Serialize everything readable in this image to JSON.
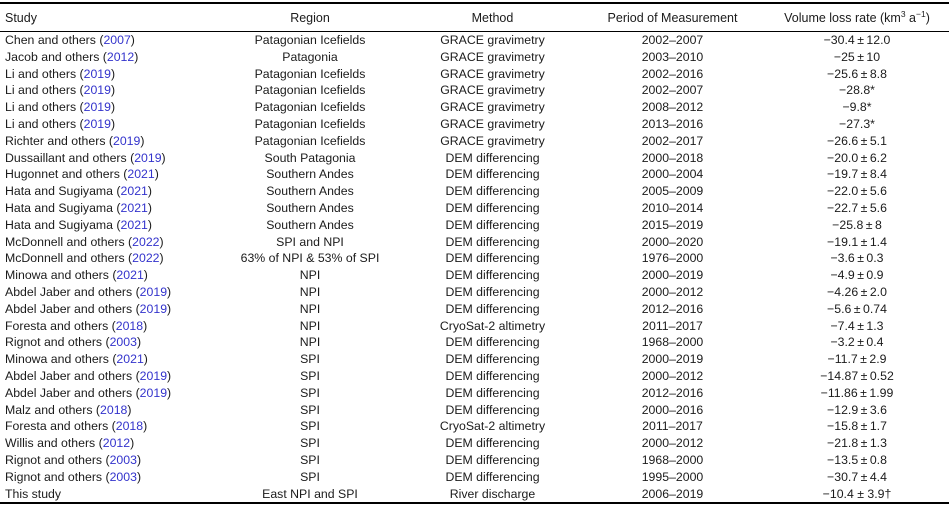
{
  "colors": {
    "link_blue": "#3333cc",
    "text": "#1b1b1b",
    "rule": "#000000",
    "background": "#ffffff"
  },
  "table": {
    "headers": {
      "study": "Study",
      "region": "Region",
      "method": "Method",
      "period": "Period of Measurement",
      "volume": {
        "pre": "Volume loss rate (km",
        "sup1": "3",
        "mid": " a",
        "sup2": "−1",
        "post": ")"
      }
    },
    "rows": [
      {
        "author": "Chen and others",
        "year": "2007",
        "region": "Patagonian Icefields",
        "method": "GRACE gravimetry",
        "period": "2002–2007",
        "value": "−30.4 ± 12.0"
      },
      {
        "author": "Jacob and others",
        "year": "2012",
        "region": "Patagonia",
        "method": "GRACE gravimetry",
        "period": "2003–2010",
        "value": "−25 ± 10"
      },
      {
        "author": "Li and others",
        "year": "2019",
        "region": "Patagonian Icefields",
        "method": "GRACE gravimetry",
        "period": "2002–2016",
        "value": "−25.6 ± 8.8"
      },
      {
        "author": "Li and others",
        "year": "2019",
        "region": "Patagonian Icefields",
        "method": "GRACE gravimetry",
        "period": "2002–2007",
        "value": "−28.8*"
      },
      {
        "author": "Li and others",
        "year": "2019",
        "region": "Patagonian Icefields",
        "method": "GRACE gravimetry",
        "period": "2008–2012",
        "value": "−9.8*"
      },
      {
        "author": "Li and others",
        "year": "2019",
        "region": "Patagonian Icefields",
        "method": "GRACE gravimetry",
        "period": "2013–2016",
        "value": "−27.3*"
      },
      {
        "author": "Richter and others",
        "year": "2019",
        "region": "Patagonian Icefields",
        "method": "GRACE gravimetry",
        "period": "2002–2017",
        "value": "−26.6 ± 5.1"
      },
      {
        "author": "Dussaillant and others",
        "year": "2019",
        "region": "South Patagonia",
        "method": "DEM differencing",
        "period": "2000–2018",
        "value": "−20.0 ± 6.2"
      },
      {
        "author": "Hugonnet and others",
        "year": "2021",
        "region": "Southern Andes",
        "method": "DEM differencing",
        "period": "2000–2004",
        "value": "−19.7 ± 8.4"
      },
      {
        "author": "Hata and Sugiyama",
        "year": "2021",
        "region": "Southern Andes",
        "method": "DEM differencing",
        "period": "2005–2009",
        "value": "−22.0 ± 5.6"
      },
      {
        "author": "Hata and Sugiyama",
        "year": "2021",
        "region": "Southern Andes",
        "method": "DEM differencing",
        "period": "2010–2014",
        "value": "−22.7 ± 5.6"
      },
      {
        "author": "Hata and Sugiyama",
        "year": "2021",
        "region": "Southern Andes",
        "method": "DEM differencing",
        "period": "2015–2019",
        "value": "−25.8 ± 8"
      },
      {
        "author": "McDonnell and others",
        "year": "2022",
        "region": "SPI and NPI",
        "method": "DEM differencing",
        "period": "2000–2020",
        "value": "−19.1 ± 1.4"
      },
      {
        "author": "McDonnell and others",
        "year": "2022",
        "region": "63% of NPI & 53% of SPI",
        "method": "DEM differencing",
        "period": "1976–2000",
        "value": "−3.6 ± 0.3"
      },
      {
        "author": "Minowa and others",
        "year": "2021",
        "region": "NPI",
        "method": "DEM differencing",
        "period": "2000–2019",
        "value": "−4.9 ± 0.9"
      },
      {
        "author": "Abdel Jaber and others",
        "year": "2019",
        "region": "NPI",
        "method": "DEM differencing",
        "period": "2000–2012",
        "value": "−4.26 ± 2.0"
      },
      {
        "author": "Abdel Jaber and others",
        "year": "2019",
        "region": "NPI",
        "method": "DEM differencing",
        "period": "2012–2016",
        "value": "−5.6 ± 0.74"
      },
      {
        "author": "Foresta and others",
        "year": "2018",
        "region": "NPI",
        "method": "CryoSat-2 altimetry",
        "period": "2011–2017",
        "value": "−7.4 ± 1.3"
      },
      {
        "author": "Rignot and others",
        "year": "2003",
        "region": "NPI",
        "method": "DEM differencing",
        "period": "1968–2000",
        "value": "−3.2 ± 0.4"
      },
      {
        "author": "Minowa and others",
        "year": "2021",
        "region": "SPI",
        "method": "DEM differencing",
        "period": "2000–2019",
        "value": "−11.7 ± 2.9"
      },
      {
        "author": "Abdel Jaber and others",
        "year": "2019",
        "region": "SPI",
        "method": "DEM differencing",
        "period": "2000–2012",
        "value": "−14.87 ± 0.52"
      },
      {
        "author": "Abdel Jaber and others",
        "year": "2019",
        "region": "SPI",
        "method": "DEM differencing",
        "period": "2012–2016",
        "value": "−11.86 ± 1.99"
      },
      {
        "author": "Malz and others",
        "year": "2018",
        "region": "SPI",
        "method": "DEM differencing",
        "period": "2000–2016",
        "value": "−12.9 ± 3.6"
      },
      {
        "author": "Foresta and others",
        "year": "2018",
        "region": "SPI",
        "method": "CryoSat-2 altimetry",
        "period": "2011–2017",
        "value": "−15.8 ± 1.7"
      },
      {
        "author": "Willis and others",
        "year": "2012",
        "region": "SPI",
        "method": "DEM differencing",
        "period": "2000–2012",
        "value": "−21.8 ± 1.3"
      },
      {
        "author": "Rignot and others",
        "year": "2003",
        "region": "SPI",
        "method": "DEM differencing",
        "period": "1968–2000",
        "value": "−13.5 ± 0.8"
      },
      {
        "author": "Rignot and others",
        "year": "2003",
        "region": "SPI",
        "method": "DEM differencing",
        "period": "1995–2000",
        "value": "−30.7 ± 4.4"
      },
      {
        "author": "This study",
        "year": null,
        "region": "East NPI and SPI",
        "method": "River discharge",
        "period": "2006–2019",
        "value": "−10.4 ± 3.9†"
      }
    ]
  }
}
